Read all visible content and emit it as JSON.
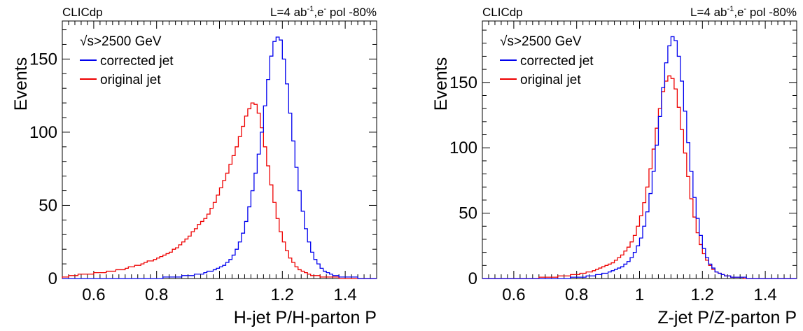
{
  "chart_data": [
    {
      "type": "histogram",
      "header_left": "CLICdp",
      "header_right": {
        "prefix": "L=4 ab",
        "sup1": "-1",
        "mid": ",e",
        "sup2": "-",
        "suffix": " pol -80%"
      },
      "ylabel": "Events",
      "xlabel": "H-jet P/H-parton P",
      "xlim": [
        0.5,
        1.5
      ],
      "ylim": [
        0,
        176
      ],
      "xticks": [
        "0.6",
        "0.8",
        "1",
        "1.2",
        "1.4"
      ],
      "xtick_values": [
        0.6,
        0.8,
        1.0,
        1.2,
        1.4
      ],
      "yticks": [
        "0",
        "50",
        "100",
        "150"
      ],
      "ytick_values": [
        0,
        50,
        100,
        150
      ],
      "legend": {
        "header": {
          "root": "√",
          "text": "s>2500 GeV"
        },
        "position": "top-left"
      },
      "bin_edges_range": [
        0.5,
        1.5
      ],
      "series": [
        {
          "name": "corrected jet",
          "color": "#0000ee",
          "values": [
            0,
            0,
            0,
            0,
            0,
            0,
            0,
            0,
            0,
            0,
            0,
            0,
            0,
            0,
            0,
            0,
            0,
            0,
            0,
            0,
            0,
            0,
            0,
            0,
            0,
            0,
            0,
            0,
            0,
            0,
            0,
            0,
            1,
            1,
            1,
            1,
            1,
            1,
            2,
            2,
            2,
            2,
            3,
            3,
            3,
            4,
            5,
            5,
            6,
            7,
            8,
            9,
            11,
            13,
            16,
            20,
            25,
            31,
            39,
            49,
            60,
            72,
            85,
            100,
            118,
            136,
            152,
            162,
            165,
            163,
            150,
            133,
            113,
            94,
            76,
            60,
            46,
            34,
            25,
            18,
            13,
            10,
            7,
            5,
            4,
            3,
            2,
            2,
            1,
            1,
            1,
            1,
            1,
            1,
            0,
            0,
            0,
            0,
            0,
            0
          ]
        },
        {
          "name": "original jet",
          "color": "#ee0000",
          "values": [
            1,
            1,
            2,
            2,
            2,
            3,
            3,
            3,
            3,
            3,
            4,
            4,
            4,
            4,
            5,
            5,
            5,
            6,
            6,
            6,
            7,
            8,
            8,
            9,
            9,
            10,
            11,
            12,
            12,
            13,
            14,
            15,
            16,
            17,
            18,
            20,
            21,
            23,
            25,
            27,
            29,
            32,
            34,
            37,
            39,
            41,
            44,
            48,
            52,
            57,
            62,
            67,
            72,
            78,
            84,
            90,
            97,
            104,
            111,
            116,
            120,
            119,
            113,
            103,
            90,
            77,
            64,
            52,
            41,
            32,
            25,
            19,
            14,
            11,
            8,
            6,
            5,
            4,
            3,
            2,
            2,
            2,
            1,
            1,
            1,
            1,
            1,
            1,
            0,
            0,
            0,
            0,
            0,
            0,
            0,
            0,
            0,
            0,
            0,
            0
          ]
        }
      ]
    },
    {
      "type": "histogram",
      "header_left": "CLICdp",
      "header_right": {
        "prefix": "L=4 ab",
        "sup1": "-1",
        "mid": ",e",
        "sup2": "-",
        "suffix": " pol -80%"
      },
      "ylabel": "Events",
      "xlabel": "Z-jet P/Z-parton P",
      "xlim": [
        0.5,
        1.5
      ],
      "ylim": [
        0,
        197
      ],
      "xticks": [
        "0.6",
        "0.8",
        "1",
        "1.2",
        "1.4"
      ],
      "xtick_values": [
        0.6,
        0.8,
        1.0,
        1.2,
        1.4
      ],
      "yticks": [
        "0",
        "50",
        "100",
        "150"
      ],
      "ytick_values": [
        0,
        50,
        100,
        150
      ],
      "legend": {
        "header": {
          "root": "√",
          "text": "s>2500 GeV"
        },
        "position": "top-left"
      },
      "bin_edges_range": [
        0.5,
        1.5
      ],
      "series": [
        {
          "name": "corrected jet",
          "color": "#0000ee",
          "values": [
            0,
            0,
            0,
            0,
            0,
            0,
            0,
            0,
            0,
            0,
            0,
            0,
            0,
            0,
            0,
            0,
            0,
            0,
            0,
            0,
            0,
            0,
            0,
            0,
            0,
            0,
            0,
            0,
            1,
            1,
            1,
            1,
            1,
            2,
            2,
            2,
            3,
            3,
            4,
            4,
            5,
            6,
            7,
            8,
            9,
            11,
            13,
            16,
            20,
            25,
            31,
            40,
            51,
            65,
            82,
            102,
            124,
            146,
            165,
            178,
            185,
            182,
            170,
            151,
            128,
            104,
            82,
            62,
            46,
            33,
            23,
            16,
            11,
            8,
            5,
            4,
            3,
            2,
            2,
            1,
            1,
            1,
            1,
            1,
            0,
            0,
            0,
            0,
            0,
            0,
            0,
            0,
            0,
            0,
            0,
            0,
            0,
            0,
            0,
            0
          ]
        },
        {
          "name": "original jet",
          "color": "#ee0000",
          "values": [
            0,
            0,
            0,
            0,
            0,
            0,
            0,
            0,
            0,
            0,
            0,
            0,
            0,
            0,
            0,
            0,
            0,
            0,
            1,
            1,
            1,
            1,
            1,
            1,
            2,
            2,
            2,
            2,
            3,
            3,
            3,
            4,
            4,
            5,
            5,
            6,
            7,
            8,
            9,
            10,
            11,
            12,
            14,
            16,
            18,
            21,
            24,
            28,
            33,
            40,
            48,
            58,
            70,
            84,
            99,
            115,
            130,
            143,
            151,
            155,
            153,
            145,
            131,
            114,
            96,
            78,
            61,
            47,
            35,
            26,
            19,
            14,
            10,
            7,
            5,
            4,
            3,
            2,
            2,
            1,
            1,
            1,
            1,
            0,
            0,
            0,
            0,
            0,
            0,
            0,
            0,
            0,
            0,
            0,
            0,
            0,
            0,
            0,
            0,
            0
          ]
        }
      ]
    }
  ]
}
